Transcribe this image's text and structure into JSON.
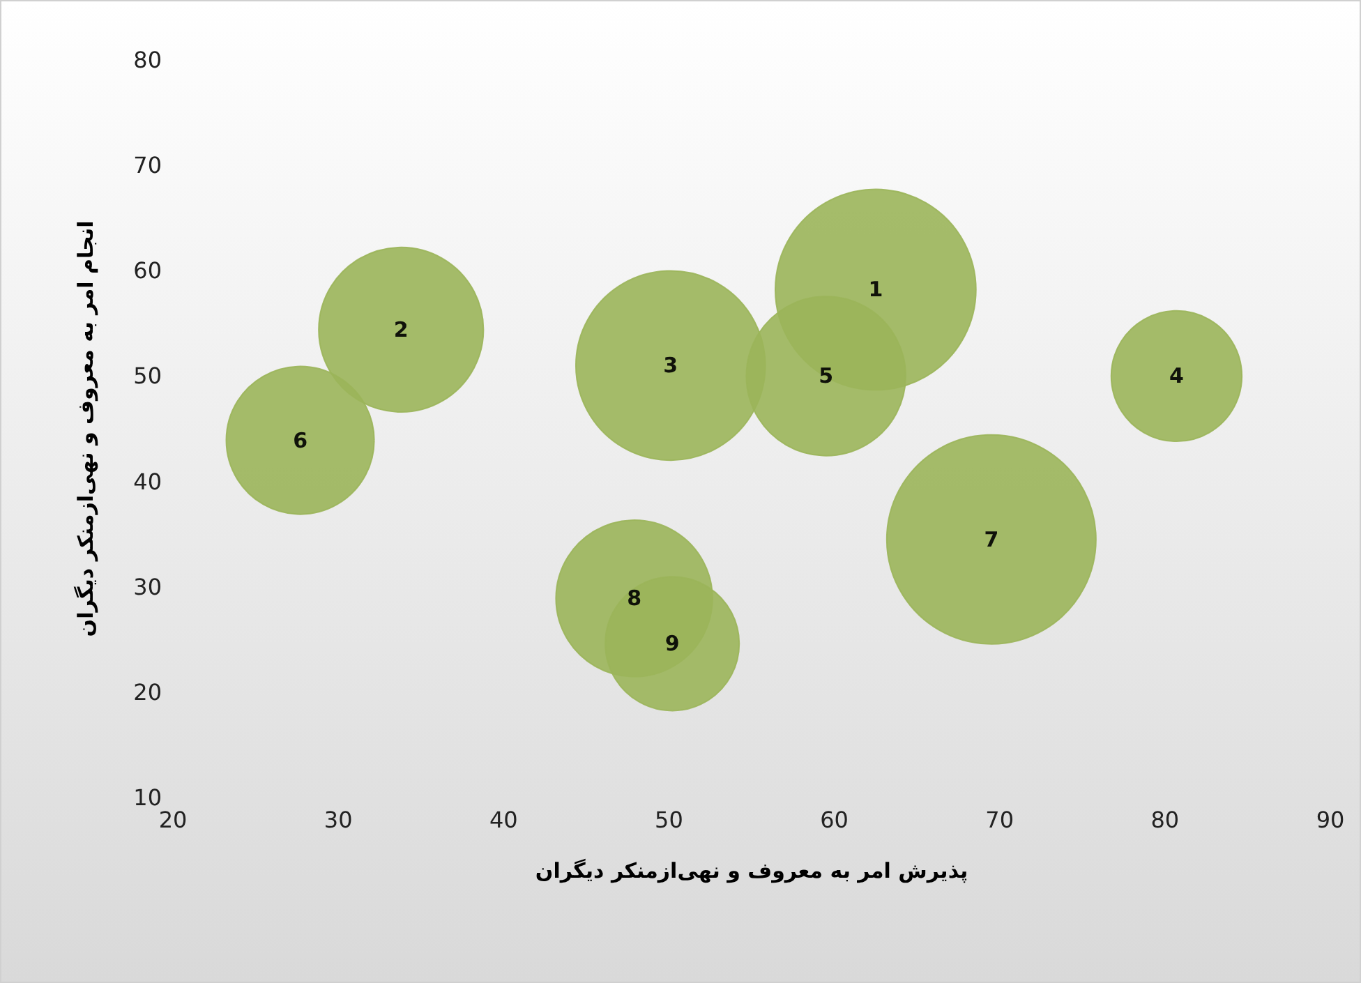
{
  "chart_data": {
    "type": "bubble",
    "xlabel": "پذیرش امر به معروف و نهی‌ازمنکر دیگران",
    "ylabel": "انجام امر به معروف و نهی‌ازمنکر دیگران",
    "xlim": [
      20,
      90
    ],
    "xticks": [
      20,
      30,
      40,
      50,
      60,
      70,
      80,
      90
    ],
    "ylim": [
      10,
      80
    ],
    "yticks": [
      10,
      20,
      30,
      40,
      50,
      60,
      70,
      80
    ],
    "grid": false,
    "legend": false,
    "marker": "circle",
    "series": [
      {
        "name": "1",
        "color": "#9bb55a",
        "x": [
          62.5
        ],
        "values": [
          58.2
        ],
        "sizes": [
          0.92
        ]
      },
      {
        "name": "2",
        "color": "#9bb55a",
        "x": [
          33.8
        ],
        "values": [
          54.4
        ],
        "sizes": [
          0.62
        ]
      },
      {
        "name": "3",
        "color": "#9bb55a",
        "x": [
          50.1
        ],
        "values": [
          51
        ],
        "sizes": [
          0.82
        ]
      },
      {
        "name": "4",
        "color": "#9bb55a",
        "x": [
          80.7
        ],
        "values": [
          50
        ],
        "sizes": [
          0.39
        ]
      },
      {
        "name": "5",
        "color": "#9bb55a",
        "x": [
          59.5
        ],
        "values": [
          50
        ],
        "sizes": [
          0.58
        ]
      },
      {
        "name": "6",
        "color": "#9bb55a",
        "x": [
          27.7
        ],
        "values": [
          43.9
        ],
        "sizes": [
          0.5
        ]
      },
      {
        "name": "7",
        "color": "#9bb55a",
        "x": [
          69.5
        ],
        "values": [
          34.5
        ],
        "sizes": [
          1
        ]
      },
      {
        "name": "8",
        "color": "#9bb55a",
        "x": [
          47.9
        ],
        "values": [
          28.9
        ],
        "sizes": [
          0.56
        ]
      },
      {
        "name": "9",
        "color": "#9bb55a",
        "x": [
          50.2
        ],
        "values": [
          24.6
        ],
        "sizes": [
          0.41
        ]
      }
    ]
  }
}
